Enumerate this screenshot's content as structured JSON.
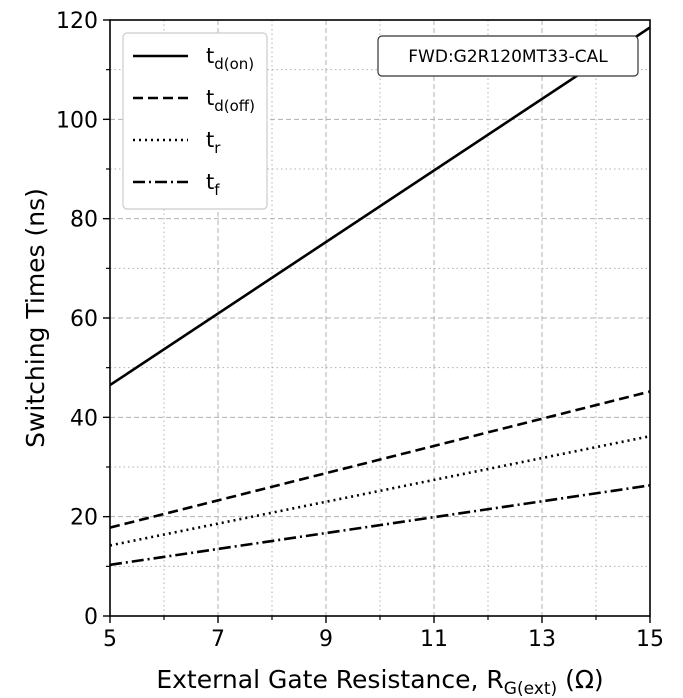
{
  "chart_data": {
    "type": "line",
    "xlabel": "External Gate Resistance, R",
    "xlabel_sub": "G(ext)",
    "xlabel_unit": " (Ω)",
    "ylabel": "Switching Times (ns)",
    "xlim": [
      5,
      15
    ],
    "ylim": [
      0,
      120
    ],
    "xticks": [
      5,
      7,
      9,
      11,
      13,
      15
    ],
    "yticks": [
      0,
      20,
      40,
      60,
      80,
      100,
      120
    ],
    "grid": true,
    "grid_style": "dashed-major, dotted-minor",
    "legend_placement": "top-left",
    "annotation": "FWD:G2R120MT33-CAL",
    "annotation_placement": "top-right",
    "series": [
      {
        "name": "t",
        "name_sub": "d(on)",
        "style": "solid",
        "x": [
          5,
          15
        ],
        "y": [
          46.5,
          118.5
        ]
      },
      {
        "name": "t",
        "name_sub": "d(off)",
        "style": "dashed",
        "x": [
          5,
          15
        ],
        "y": [
          17.8,
          45.2
        ]
      },
      {
        "name": "t",
        "name_sub": "r",
        "style": "dotted",
        "x": [
          5,
          15
        ],
        "y": [
          14.2,
          36.2
        ]
      },
      {
        "name": "t",
        "name_sub": "f",
        "style": "dashdot",
        "x": [
          5,
          15
        ],
        "y": [
          10.3,
          26.3
        ]
      }
    ],
    "colors": {
      "lines": "#000000",
      "grid": "#b0b0b0",
      "background": "#ffffff"
    }
  }
}
